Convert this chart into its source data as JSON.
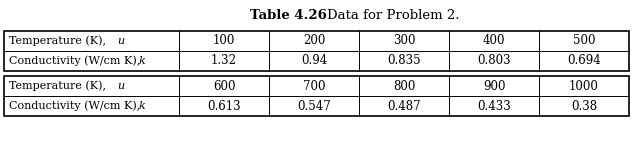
{
  "title_bold": "Table 4.26",
  "title_normal": "    Data for Problem 2.",
  "temps_1": [
    "100",
    "200",
    "300",
    "400",
    "500"
  ],
  "cond_1": [
    "1.32",
    "0.94",
    "0.835",
    "0.803",
    "0.694"
  ],
  "temps_2": [
    "600",
    "700",
    "800",
    "900",
    "1000"
  ],
  "cond_2": [
    "0.613",
    "0.547",
    "0.487",
    "0.433",
    "0.38"
  ],
  "bg_color": "#ffffff",
  "text_color": "#000000",
  "label1_plain": "Temperature (K), ",
  "label1_italic": "u",
  "label2_plain": "Conductivity (W/cm K), ",
  "label2_italic": "k"
}
